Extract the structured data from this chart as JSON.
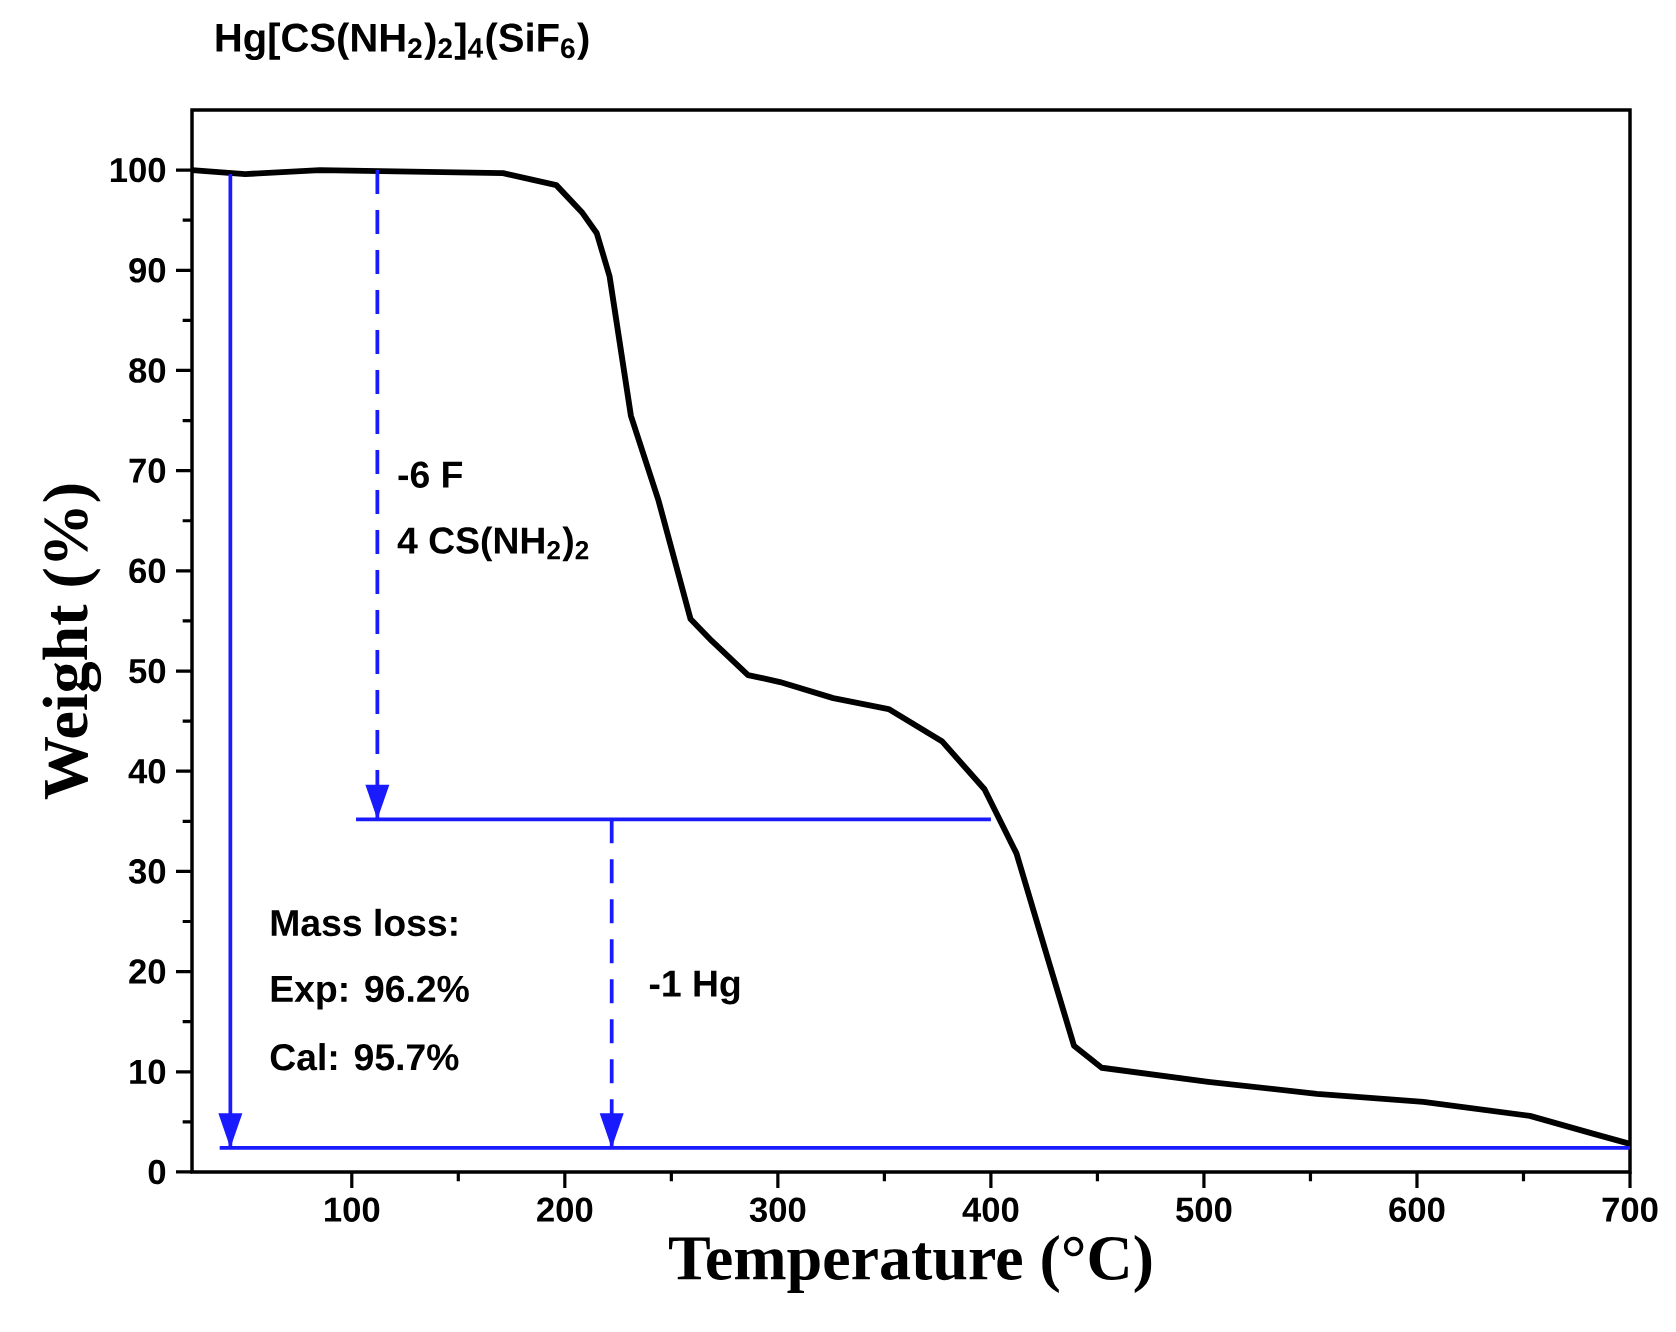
{
  "chart_data": {
    "type": "line",
    "title": "Hg[CS(NH$_{2}$)$_{2}$]$_{4}$(SiF$_{6}$)",
    "xlabel": "Temperature (°C)",
    "ylabel": "Weight (%)",
    "xlim": [
      25,
      700
    ],
    "xticks": [
      100,
      200,
      300,
      400,
      500,
      600,
      700
    ],
    "ylim": [
      0,
      106
    ],
    "yticks": [
      0,
      10,
      20,
      30,
      40,
      50,
      60,
      70,
      80,
      90,
      100
    ],
    "series": [
      {
        "color": "#000000",
        "x": [
          25,
          50,
          85,
          171,
          196,
          208,
          215,
          221,
          231,
          244,
          259,
          269,
          286,
          301,
          326,
          352,
          377,
          397,
          412,
          427,
          439,
          452,
          502,
          553,
          603,
          653,
          683,
          700
        ],
        "values": [
          100,
          99.6,
          100,
          99.7,
          98.5,
          95.8,
          93.7,
          89.4,
          75.5,
          67,
          55.2,
          53,
          49.6,
          48.9,
          47.3,
          46.2,
          43,
          38.2,
          31.8,
          21.1,
          12.6,
          10.4,
          9,
          7.8,
          7,
          5.6,
          3.8,
          2.8
        ]
      },
      {
        "color": "#1a1aff",
        "x": [
          43,
          43
        ],
        "values": [
          99.6,
          2.4
        ]
      },
      {
        "color": "#1a1aff",
        "x": [
          38,
          700
        ],
        "values": [
          2.4,
          2.4
        ]
      },
      {
        "color": "#1a1aff",
        "x": [
          102,
          400
        ],
        "values": [
          35.2,
          35.2
        ]
      },
      {
        "color": "#1a1aff",
        "line_style": "dashed",
        "x": [
          112,
          112
        ],
        "values": [
          100,
          35.2
        ]
      },
      {
        "color": "#1a1aff",
        "line_style": "dashed",
        "x": [
          222,
          222
        ],
        "values": [
          35.2,
          2.4
        ]
      }
    ],
    "annotations": [
      "-6 F",
      "4 CS(NH$_{2}$)$_{2}$",
      "Mass loss:",
      "Exp: 96.2%",
      "Cal: 95.7%",
      "-1 Hg"
    ]
  }
}
